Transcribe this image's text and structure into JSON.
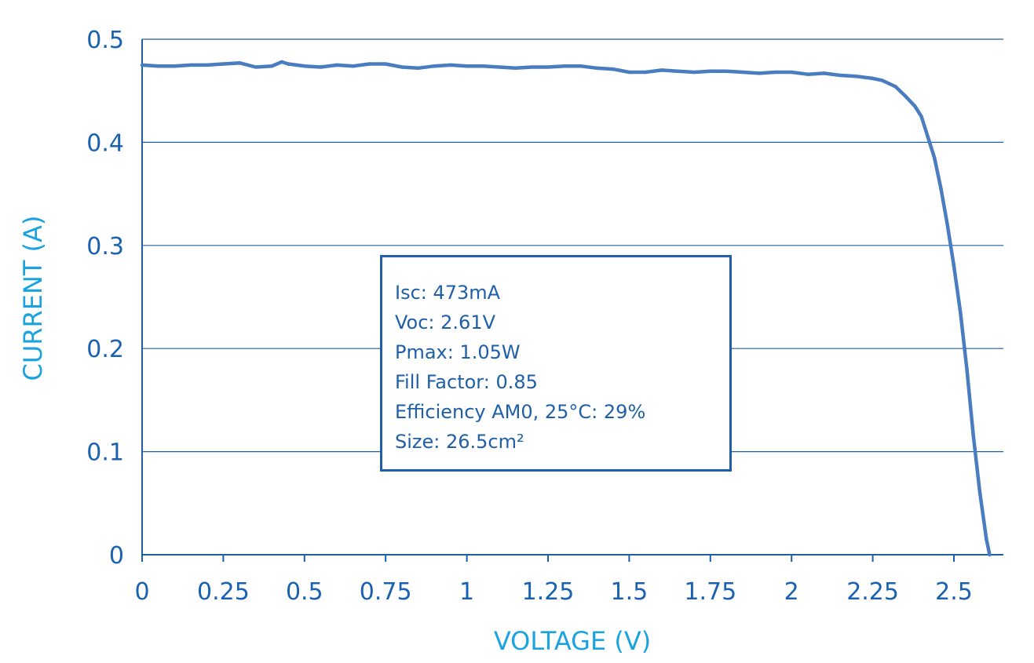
{
  "colors": {
    "axis_text": "#1a62b0",
    "axis_title": "#1aa3df",
    "grid": "#1e5fa8",
    "curve": "#4a7cc0",
    "box_border": "#1e5fa8",
    "box_text": "#1e5fa8"
  },
  "chart_data": {
    "type": "line",
    "xlabel": "VOLTAGE (V)",
    "ylabel": "CURRENT (A)",
    "xlim": [
      0,
      2.65
    ],
    "ylim": [
      0,
      0.5
    ],
    "xticks": [
      "0",
      "0.25",
      "0.5",
      "0.75",
      "1",
      "1.25",
      "1.5",
      "1.75",
      "2",
      "2.25",
      "2.5"
    ],
    "xtick_values": [
      0,
      0.25,
      0.5,
      0.75,
      1,
      1.25,
      1.5,
      1.75,
      2,
      2.25,
      2.5
    ],
    "yticks": [
      "0",
      "0.1",
      "0.2",
      "0.3",
      "0.4",
      "0.5"
    ],
    "ytick_values": [
      0,
      0.1,
      0.2,
      0.3,
      0.4,
      0.5
    ],
    "grid": "horizontal",
    "series": [
      {
        "x": [
          0,
          0.05,
          0.1,
          0.15,
          0.2,
          0.25,
          0.3,
          0.35,
          0.4,
          0.43,
          0.45,
          0.5,
          0.55,
          0.6,
          0.65,
          0.7,
          0.75,
          0.8,
          0.85,
          0.9,
          0.95,
          1.0,
          1.05,
          1.1,
          1.15,
          1.2,
          1.25,
          1.3,
          1.35,
          1.4,
          1.45,
          1.5,
          1.55,
          1.6,
          1.65,
          1.7,
          1.75,
          1.8,
          1.85,
          1.9,
          1.95,
          2.0,
          2.05,
          2.1,
          2.15,
          2.2,
          2.25,
          2.28,
          2.3,
          2.32,
          2.35,
          2.38,
          2.4,
          2.42,
          2.44,
          2.46,
          2.48,
          2.5,
          2.52,
          2.54,
          2.56,
          2.58,
          2.6,
          2.61
        ],
        "y": [
          0.475,
          0.474,
          0.474,
          0.475,
          0.475,
          0.476,
          0.477,
          0.473,
          0.474,
          0.478,
          0.476,
          0.474,
          0.473,
          0.475,
          0.474,
          0.476,
          0.476,
          0.473,
          0.472,
          0.474,
          0.475,
          0.474,
          0.474,
          0.473,
          0.472,
          0.473,
          0.473,
          0.474,
          0.474,
          0.472,
          0.471,
          0.468,
          0.468,
          0.47,
          0.469,
          0.468,
          0.469,
          0.469,
          0.468,
          0.467,
          0.468,
          0.468,
          0.466,
          0.467,
          0.465,
          0.464,
          0.462,
          0.46,
          0.457,
          0.454,
          0.445,
          0.435,
          0.425,
          0.405,
          0.385,
          0.355,
          0.32,
          0.28,
          0.235,
          0.18,
          0.115,
          0.06,
          0.015,
          0.0
        ]
      }
    ],
    "annotations": [
      "Isc: 473mA",
      "Voc: 2.61V",
      "Pmax: 1.05W",
      "Fill Factor: 0.85",
      "Efficiency AM0, 25°C: 29%",
      "Size: 26.5cm²"
    ]
  }
}
